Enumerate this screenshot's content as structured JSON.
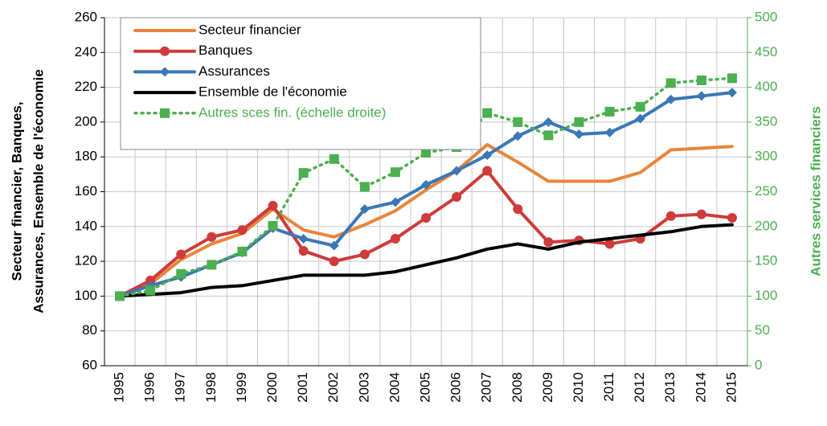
{
  "chart_data": {
    "type": "line",
    "ylabel": [
      "Secteur financier, Banques,",
      "Assurances, Ensemble de l'économie"
    ],
    "y2label": "Autres services financiers",
    "categories": [
      "1995",
      "1996",
      "1997",
      "1998",
      "1999",
      "2000",
      "2001",
      "2002",
      "2003",
      "2004",
      "2005",
      "2006",
      "2007",
      "2008",
      "2009",
      "2010",
      "2011",
      "2012",
      "2013",
      "2014",
      "2015"
    ],
    "series": [
      {
        "name": "Secteur financier",
        "color": "#e8853b",
        "marker": "none",
        "values": [
          100,
          107,
          121,
          130,
          136,
          150,
          138,
          134,
          141,
          149,
          161,
          172,
          187,
          177,
          166,
          166,
          166,
          171,
          184,
          185,
          186
        ]
      },
      {
        "name": "Banques",
        "color": "#d03a3a",
        "marker": "circle",
        "values": [
          100,
          109,
          124,
          134,
          138,
          152,
          126,
          120,
          124,
          133,
          145,
          157,
          172,
          150,
          131,
          132,
          130,
          133,
          146,
          147,
          145
        ]
      },
      {
        "name": "Assurances",
        "color": "#3a78b5",
        "marker": "diamond",
        "values": [
          100,
          106,
          111,
          118,
          125,
          139,
          133,
          129,
          150,
          154,
          164,
          172,
          181,
          192,
          200,
          193,
          194,
          202,
          213,
          215,
          217
        ]
      },
      {
        "name": "Ensemble de l'économie",
        "color": "#000000",
        "marker": "none",
        "values": [
          100,
          101,
          102,
          105,
          106,
          109,
          112,
          112,
          112,
          114,
          118,
          122,
          127,
          130,
          127,
          131,
          133,
          135,
          137,
          140,
          141
        ]
      },
      {
        "name": "Autres sces fin. (échelle droite)",
        "color": "#4caf50",
        "marker": "square",
        "dotted": true,
        "axis": "y2",
        "values": [
          100,
          108,
          132,
          145,
          164,
          201,
          277,
          297,
          257,
          278,
          306,
          314,
          363,
          350,
          331,
          350,
          365,
          372,
          406,
          410,
          413
        ]
      }
    ],
    "ylim": [
      60,
      260
    ],
    "yticks": [
      60,
      80,
      100,
      120,
      140,
      160,
      180,
      200,
      220,
      240,
      260
    ],
    "y2lim": [
      0,
      500
    ],
    "y2ticks": [
      0,
      50,
      100,
      150,
      200,
      250,
      300,
      350,
      400,
      450,
      500
    ],
    "y2color": "#4caf50",
    "grid": true
  }
}
